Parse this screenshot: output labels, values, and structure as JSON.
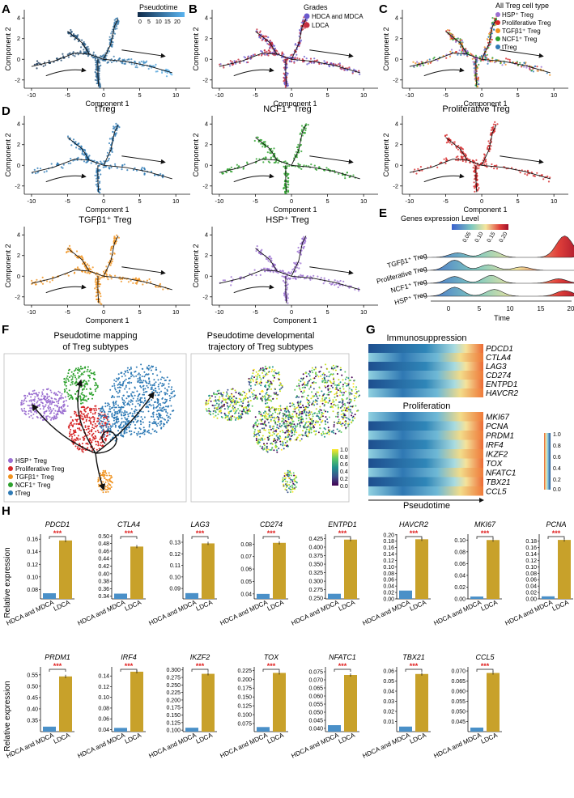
{
  "colors": {
    "teal_blue": "#2e7ab5",
    "green": "#2da12d",
    "red": "#d62728",
    "orange": "#f0921e",
    "purple": "#9b6fd1",
    "ldca_bar": "#c8a12a",
    "ctrl_bar": "#4a90c8",
    "sig": "#e02020",
    "grade_purple": "#6a5acd",
    "grade_red": "#c62d3f"
  },
  "panel_letters": [
    "A",
    "B",
    "C",
    "D",
    "E",
    "F",
    "G",
    "H"
  ],
  "common": {
    "xlabel": "Component 1",
    "ylabel": "Component 2",
    "x_ticks": [
      "-10",
      "-5",
      "0",
      "5",
      "10"
    ],
    "y_ticks": [
      "-2",
      "0",
      "2",
      "4"
    ]
  },
  "panelA": {
    "legend_title": "Pseudotime",
    "legend_ticks": [
      "0",
      "5",
      "10",
      "15",
      "20"
    ]
  },
  "panelB": {
    "legend_title": "Grades",
    "legend_items": [
      "HDCA and MDCA",
      "LDCA"
    ]
  },
  "panelC": {
    "legend_title": "All Treg cell type",
    "legend_items": [
      "HSP⁺ Treg",
      "Proliferative Treg",
      "TGFβ1⁺ Treg",
      "NCF1⁺ Treg",
      "tTreg"
    ]
  },
  "panelD": {
    "titles": [
      "tTreg",
      "NCF1⁺ Treg",
      "Proliferative Treg",
      "TGFβ1⁺ Treg",
      "HSP⁺ Treg"
    ]
  },
  "panelE": {
    "legend_title": "Genes expression Level",
    "legend_ticks": [
      "0.05",
      "0.10",
      "0.15",
      "0.20"
    ],
    "rows": [
      "TGFβ1⁺ Treg",
      "Proliferative Treg",
      "NCF1⁺ Treg",
      "HSP⁺ Treg"
    ],
    "x_ticks": [
      "0",
      "5",
      "10",
      "15",
      "20"
    ],
    "xlabel": "Time"
  },
  "panelF": {
    "title_left_1": "Pseudotime mapping",
    "title_left_2": "of Treg subtypes",
    "title_right_1": "Pseudotime developmental",
    "title_right_2": "trajectory of Treg subtypes",
    "legend_items": [
      "HSP⁺ Treg",
      "Proliferative Treg",
      "TGFβ1⁺ Treg",
      "NCF1⁺ Treg",
      "tTreg"
    ],
    "colorbar_ticks": [
      "1.0",
      "0.8",
      "0.6",
      "0.4",
      "0.2",
      "0.0"
    ]
  },
  "panelG": {
    "group1_title": "Immunosuppression",
    "group1_genes": [
      "PDCD1",
      "CTLA4",
      "LAG3",
      "CD274",
      "ENTPD1",
      "HAVCR2"
    ],
    "group2_title": "Proliferation",
    "group2_genes": [
      "MKI67",
      "PCNA",
      "PRDM1",
      "IRF4",
      "IKZF2",
      "TOX",
      "NFATC1",
      "TBX21",
      "CCL5"
    ],
    "xlabel": "Pseudotime",
    "colorbar_ticks": [
      "1.0",
      "0.8",
      "0.6",
      "0.4",
      "0.2",
      "0.0"
    ]
  },
  "panelH": {
    "ylabel": "Relative expression",
    "x_categories": [
      "HDCA and MDCA",
      "LDCA"
    ],
    "sig_label": "***"
  },
  "chart_data": [
    {
      "type": "bar",
      "panel": "H",
      "gene": "PDCD1",
      "categories": [
        "HDCA and MDCA",
        "LDCA"
      ],
      "values": [
        0.074,
        0.158
      ],
      "ylim": [
        0.065,
        0.168
      ],
      "yticks": [
        "0.08",
        "0.10",
        "0.12",
        "0.14",
        "0.16"
      ],
      "ytick_values": [
        0.08,
        0.1,
        0.12,
        0.14,
        0.16
      ]
    },
    {
      "type": "bar",
      "panel": "H",
      "gene": "CTLA4",
      "categories": [
        "HDCA and MDCA",
        "LDCA"
      ],
      "values": [
        0.347,
        0.472
      ],
      "ylim": [
        0.333,
        0.505
      ],
      "yticks": [
        "0.34",
        "0.36",
        "0.38",
        "0.40",
        "0.42",
        "0.44",
        "0.46",
        "0.48",
        "0.50"
      ],
      "ytick_values": [
        0.34,
        0.36,
        0.38,
        0.4,
        0.42,
        0.44,
        0.46,
        0.48,
        0.5
      ]
    },
    {
      "type": "bar",
      "panel": "H",
      "gene": "LAG3",
      "categories": [
        "HDCA and MDCA",
        "LDCA"
      ],
      "values": [
        0.086,
        0.129
      ],
      "ylim": [
        0.081,
        0.137
      ],
      "yticks": [
        "0.09",
        "0.10",
        "0.11",
        "0.12",
        "0.13"
      ],
      "ytick_values": [
        0.09,
        0.1,
        0.11,
        0.12,
        0.13
      ]
    },
    {
      "type": "bar",
      "panel": "H",
      "gene": "CD274",
      "categories": [
        "HDCA and MDCA",
        "LDCA"
      ],
      "values": [
        0.04,
        0.081
      ],
      "ylim": [
        0.036,
        0.088
      ],
      "yticks": [
        "0.04",
        "0.05",
        "0.06",
        "0.07",
        "0.08"
      ],
      "ytick_values": [
        0.04,
        0.05,
        0.06,
        0.07,
        0.08
      ]
    },
    {
      "type": "bar",
      "panel": "H",
      "gene": "ENTPD1",
      "categories": [
        "HDCA and MDCA",
        "LDCA"
      ],
      "values": [
        0.263,
        0.422
      ],
      "ylim": [
        0.248,
        0.438
      ],
      "yticks": [
        "0.250",
        "0.275",
        "0.300",
        "0.325",
        "0.350",
        "0.375",
        "0.400",
        "0.425"
      ],
      "ytick_values": [
        0.25,
        0.275,
        0.3,
        0.325,
        0.35,
        0.375,
        0.4,
        0.425
      ]
    },
    {
      "type": "bar",
      "panel": "H",
      "gene": "HAVCR2",
      "categories": [
        "HDCA and MDCA",
        "LDCA"
      ],
      "values": [
        0.026,
        0.186
      ],
      "ylim": [
        0.0,
        0.202
      ],
      "yticks": [
        "0.00",
        "0.02",
        "0.04",
        "0.06",
        "0.08",
        "0.10",
        "0.12",
        "0.14",
        "0.16",
        "0.18",
        "0.20"
      ],
      "ytick_values": [
        0,
        0.02,
        0.04,
        0.06,
        0.08,
        0.1,
        0.12,
        0.14,
        0.16,
        0.18,
        0.2
      ]
    },
    {
      "type": "bar",
      "panel": "H",
      "gene": "MKI67",
      "categories": [
        "HDCA and MDCA",
        "LDCA"
      ],
      "values": [
        0.004,
        0.1
      ],
      "ylim": [
        0.0,
        0.11
      ],
      "yticks": [
        "0.00",
        "0.02",
        "0.04",
        "0.06",
        "0.08",
        "0.10"
      ],
      "ytick_values": [
        0,
        0.02,
        0.04,
        0.06,
        0.08,
        0.1
      ]
    },
    {
      "type": "bar",
      "panel": "H",
      "gene": "PCNA",
      "categories": [
        "HDCA and MDCA",
        "LDCA"
      ],
      "values": [
        0.008,
        0.184
      ],
      "ylim": [
        0.0,
        0.202
      ],
      "yticks": [
        "0.00",
        "0.02",
        "0.04",
        "0.06",
        "0.08",
        "0.10",
        "0.12",
        "0.14",
        "0.16",
        "0.18"
      ],
      "ytick_values": [
        0,
        0.02,
        0.04,
        0.06,
        0.08,
        0.1,
        0.12,
        0.14,
        0.16,
        0.18
      ]
    },
    {
      "type": "bar",
      "panel": "H",
      "gene": "PRDM1",
      "categories": [
        "HDCA and MDCA",
        "LDCA"
      ],
      "values": [
        0.322,
        0.543
      ],
      "ylim": [
        0.3,
        0.585
      ],
      "yticks": [
        "0.35",
        "0.40",
        "0.45",
        "0.50",
        "0.55"
      ],
      "ytick_values": [
        0.35,
        0.4,
        0.45,
        0.5,
        0.55
      ]
    },
    {
      "type": "bar",
      "panel": "H",
      "gene": "IRF4",
      "categories": [
        "HDCA and MDCA",
        "LDCA"
      ],
      "values": [
        0.043,
        0.148
      ],
      "ylim": [
        0.036,
        0.157
      ],
      "yticks": [
        "0.04",
        "0.06",
        "0.08",
        "0.10",
        "0.12",
        "0.14"
      ],
      "ytick_values": [
        0.04,
        0.06,
        0.08,
        0.1,
        0.12,
        0.14
      ]
    },
    {
      "type": "bar",
      "panel": "H",
      "gene": "IKZF2",
      "categories": [
        "HDCA and MDCA",
        "LDCA"
      ],
      "values": [
        0.108,
        0.287
      ],
      "ylim": [
        0.095,
        0.31
      ],
      "yticks": [
        "0.100",
        "0.125",
        "0.150",
        "0.175",
        "0.200",
        "0.225",
        "0.250",
        "0.275",
        "0.300"
      ],
      "ytick_values": [
        0.1,
        0.125,
        0.15,
        0.175,
        0.2,
        0.225,
        0.25,
        0.275,
        0.3
      ]
    },
    {
      "type": "bar",
      "panel": "H",
      "gene": "TOX",
      "categories": [
        "HDCA and MDCA",
        "LDCA"
      ],
      "values": [
        0.065,
        0.218
      ],
      "ylim": [
        0.052,
        0.235
      ],
      "yticks": [
        "0.075",
        "0.100",
        "0.125",
        "0.150",
        "0.175",
        "0.200",
        "0.225"
      ],
      "ytick_values": [
        0.075,
        0.1,
        0.125,
        0.15,
        0.175,
        0.2,
        0.225
      ]
    },
    {
      "type": "bar",
      "panel": "H",
      "gene": "NFATC1",
      "categories": [
        "HDCA and MDCA",
        "LDCA"
      ],
      "values": [
        0.042,
        0.073
      ],
      "ylim": [
        0.038,
        0.078
      ],
      "yticks": [
        "0.040",
        "0.045",
        "0.050",
        "0.055",
        "0.060",
        "0.065",
        "0.070",
        "0.075"
      ],
      "ytick_values": [
        0.04,
        0.045,
        0.05,
        0.055,
        0.06,
        0.065,
        0.07,
        0.075
      ]
    },
    {
      "type": "bar",
      "panel": "H",
      "gene": "TBX21",
      "categories": [
        "HDCA and MDCA",
        "LDCA"
      ],
      "values": [
        0.005,
        0.057
      ],
      "ylim": [
        0.0,
        0.064
      ],
      "yticks": [
        "0.01",
        "0.02",
        "0.03",
        "0.04",
        "0.05",
        "0.06"
      ],
      "ytick_values": [
        0.01,
        0.02,
        0.03,
        0.04,
        0.05,
        0.06
      ]
    },
    {
      "type": "bar",
      "panel": "H",
      "gene": "CCL5",
      "categories": [
        "HDCA and MDCA",
        "LDCA"
      ],
      "values": [
        0.042,
        0.069
      ],
      "ylim": [
        0.04,
        0.072
      ],
      "yticks": [
        "0.045",
        "0.050",
        "0.055",
        "0.060",
        "0.065",
        "0.070"
      ],
      "ytick_values": [
        0.045,
        0.05,
        0.055,
        0.06,
        0.065,
        0.07
      ]
    }
  ]
}
